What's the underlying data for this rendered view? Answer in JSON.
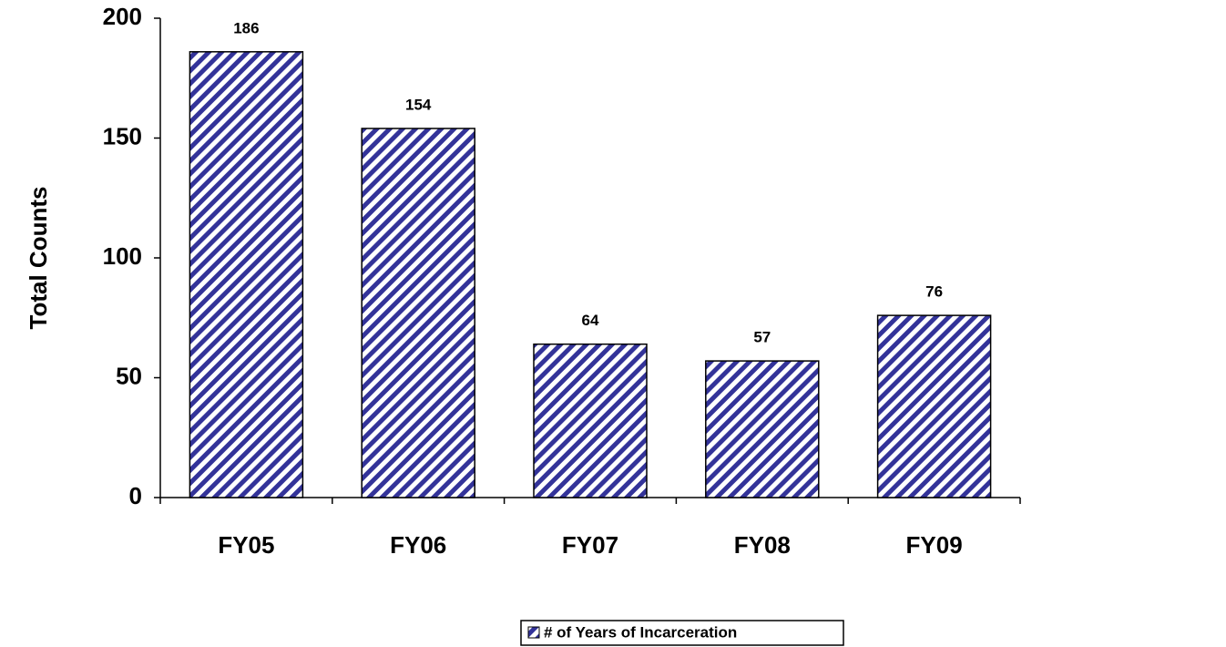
{
  "chart_data": {
    "type": "bar",
    "y_label": "Total Counts",
    "categories": [
      "FY05",
      "FY06",
      "FY07",
      "FY08",
      "FY09"
    ],
    "series": [
      {
        "name": "# of Years of Incarceration",
        "color": "#333399",
        "values": [
          186,
          154,
          64,
          57,
          76
        ]
      }
    ],
    "ylim": [
      0,
      200
    ],
    "yticks": [
      0,
      50,
      100,
      150,
      200
    ],
    "legend": "bottom",
    "pattern": "hatch"
  }
}
